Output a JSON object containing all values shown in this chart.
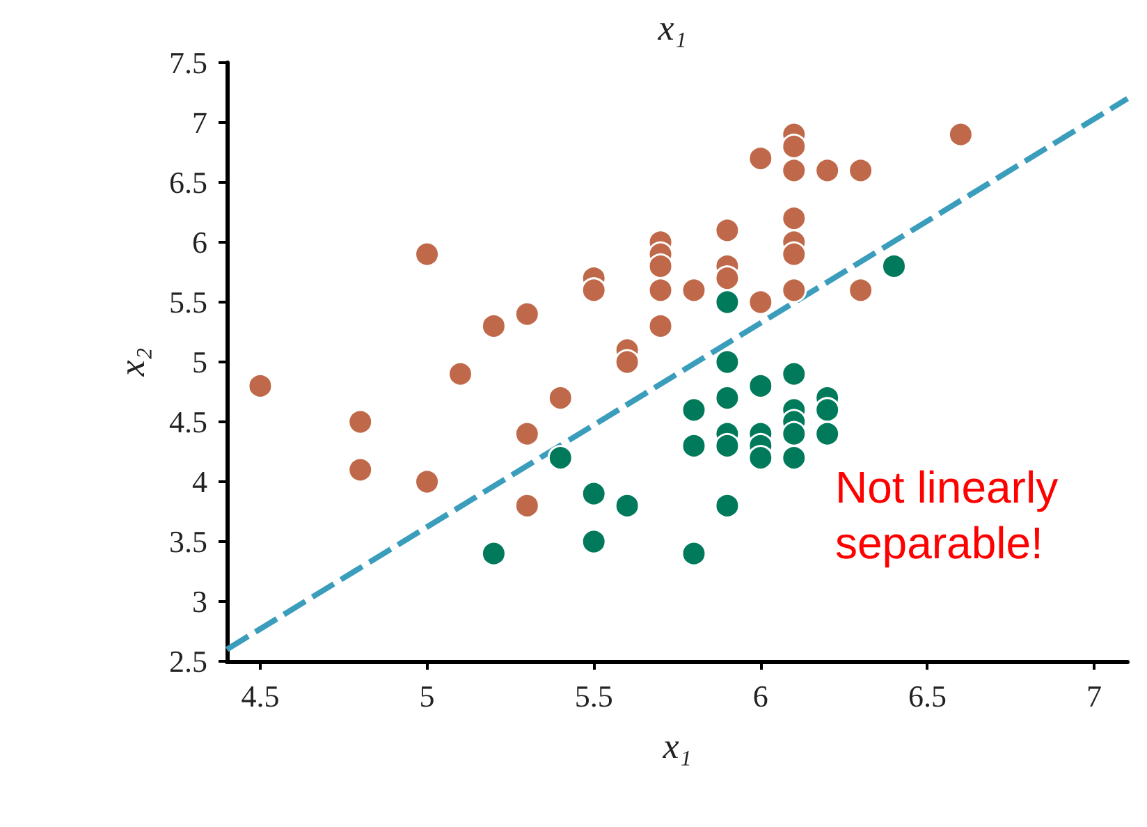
{
  "chart_data": {
    "type": "scatter",
    "title": "x₁",
    "xlabel": "x₁",
    "ylabel": "x₂",
    "xlim": [
      4.4,
      7.1
    ],
    "ylim": [
      2.5,
      7.5
    ],
    "xticks": [
      4.5,
      5,
      5.5,
      6,
      6.5,
      7
    ],
    "yticks": [
      2.5,
      3,
      3.5,
      4,
      4.5,
      5,
      5.5,
      6,
      6.5,
      7,
      7.5
    ],
    "marker": "circle",
    "annotations": [
      "Not linearly separable!"
    ],
    "series": [
      {
        "color": "#c0694a",
        "x": [
          4.5,
          4.8,
          4.8,
          5.0,
          5.0,
          5.1,
          5.2,
          5.3,
          5.3,
          5.3,
          5.4,
          5.5,
          5.5,
          5.6,
          5.6,
          5.7,
          5.7,
          5.7,
          5.7,
          5.7,
          5.8,
          5.9,
          5.9,
          5.9,
          6.0,
          6.0,
          6.1,
          6.1,
          6.1,
          6.1,
          6.1,
          6.1,
          6.1,
          6.2,
          6.3,
          6.3,
          6.6
        ],
        "values": [
          4.8,
          4.5,
          4.1,
          5.9,
          4.0,
          4.9,
          5.3,
          5.4,
          4.4,
          3.8,
          4.7,
          5.7,
          5.6,
          5.1,
          5.0,
          6.0,
          5.9,
          5.8,
          5.6,
          5.3,
          5.6,
          6.1,
          5.8,
          5.7,
          6.7,
          5.5,
          6.9,
          6.8,
          6.6,
          6.2,
          6.0,
          5.9,
          5.6,
          6.6,
          6.6,
          5.6,
          6.9
        ]
      },
      {
        "color": "#007a5a",
        "x": [
          5.2,
          5.4,
          5.5,
          5.5,
          5.6,
          5.8,
          5.8,
          5.8,
          5.9,
          5.9,
          5.9,
          5.9,
          5.9,
          5.9,
          6.0,
          6.0,
          6.0,
          6.0,
          6.1,
          6.1,
          6.1,
          6.1,
          6.1,
          6.2,
          6.2,
          6.2,
          6.4
        ],
        "values": [
          3.4,
          4.2,
          3.9,
          3.5,
          3.8,
          3.4,
          4.6,
          4.3,
          5.5,
          5.0,
          4.7,
          4.4,
          4.3,
          3.8,
          4.8,
          4.4,
          4.3,
          4.2,
          4.9,
          4.6,
          4.5,
          4.4,
          4.2,
          4.7,
          4.6,
          4.4,
          5.8
        ]
      },
      {
        "type": "line",
        "color": "#3a9dbb",
        "line_style": "dashed",
        "marker": "none",
        "x": [
          4.4,
          7.1
        ],
        "values": [
          2.6,
          7.2
        ]
      }
    ]
  }
}
